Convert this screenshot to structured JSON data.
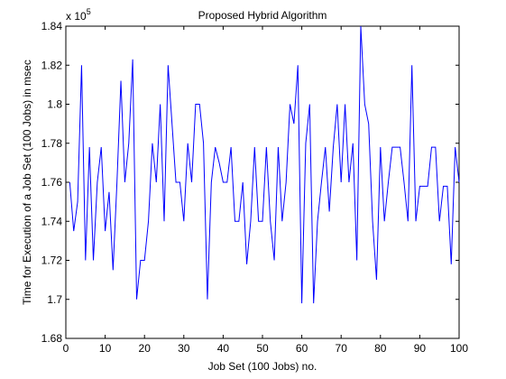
{
  "chart_data": {
    "type": "line",
    "title": "Proposed Hybrid Algorithm",
    "xlabel": "Job Set (100 Jobs) no.",
    "ylabel": "Time for Execution of a Job Set (100 Jobs) in msec",
    "y_multiplier": {
      "base": "x 10",
      "power": "5"
    },
    "x": [
      1,
      2,
      3,
      4,
      5,
      6,
      7,
      8,
      9,
      10,
      11,
      12,
      13,
      14,
      15,
      16,
      17,
      18,
      19,
      20,
      21,
      22,
      23,
      24,
      25,
      26,
      27,
      28,
      29,
      30,
      31,
      32,
      33,
      34,
      35,
      36,
      37,
      38,
      39,
      40,
      41,
      42,
      43,
      44,
      45,
      46,
      47,
      48,
      49,
      50,
      51,
      52,
      53,
      54,
      55,
      56,
      57,
      58,
      59,
      60,
      61,
      62,
      63,
      64,
      65,
      66,
      67,
      68,
      69,
      70,
      71,
      72,
      73,
      74,
      75,
      76,
      77,
      78,
      79,
      80,
      81,
      82,
      83,
      84,
      85,
      86,
      87,
      88,
      89,
      90,
      91,
      92,
      93,
      94,
      95,
      96,
      97,
      98,
      99,
      100
    ],
    "series": [
      {
        "name": "Proposed Hybrid Algorithm",
        "color": "#0000ff",
        "values": [
          1.76,
          1.735,
          1.75,
          1.82,
          1.72,
          1.778,
          1.72,
          1.76,
          1.778,
          1.735,
          1.755,
          1.715,
          1.76,
          1.812,
          1.76,
          1.78,
          1.823,
          1.7,
          1.72,
          1.72,
          1.74,
          1.78,
          1.76,
          1.8,
          1.74,
          1.82,
          1.79,
          1.76,
          1.76,
          1.74,
          1.78,
          1.76,
          1.8,
          1.8,
          1.78,
          1.7,
          1.76,
          1.778,
          1.77,
          1.76,
          1.76,
          1.778,
          1.74,
          1.74,
          1.76,
          1.718,
          1.74,
          1.778,
          1.74,
          1.74,
          1.778,
          1.74,
          1.72,
          1.778,
          1.74,
          1.76,
          1.8,
          1.79,
          1.82,
          1.698,
          1.78,
          1.8,
          1.698,
          1.74,
          1.76,
          1.778,
          1.745,
          1.778,
          1.8,
          1.76,
          1.8,
          1.76,
          1.78,
          1.72,
          1.84,
          1.8,
          1.79,
          1.74,
          1.71,
          1.778,
          1.74,
          1.76,
          1.778,
          1.778,
          1.778,
          1.76,
          1.74,
          1.82,
          1.74,
          1.758,
          1.758,
          1.758,
          1.778,
          1.778,
          1.74,
          1.758,
          1.758,
          1.718,
          1.778,
          1.76
        ]
      }
    ],
    "xlim": [
      0,
      100
    ],
    "xticks": [
      0,
      10,
      20,
      30,
      40,
      50,
      60,
      70,
      80,
      90,
      100
    ],
    "ylim": [
      1.68,
      1.84
    ],
    "yticks": [
      1.68,
      1.7,
      1.72,
      1.74,
      1.76,
      1.78,
      1.8,
      1.82,
      1.84
    ],
    "grid": false
  }
}
